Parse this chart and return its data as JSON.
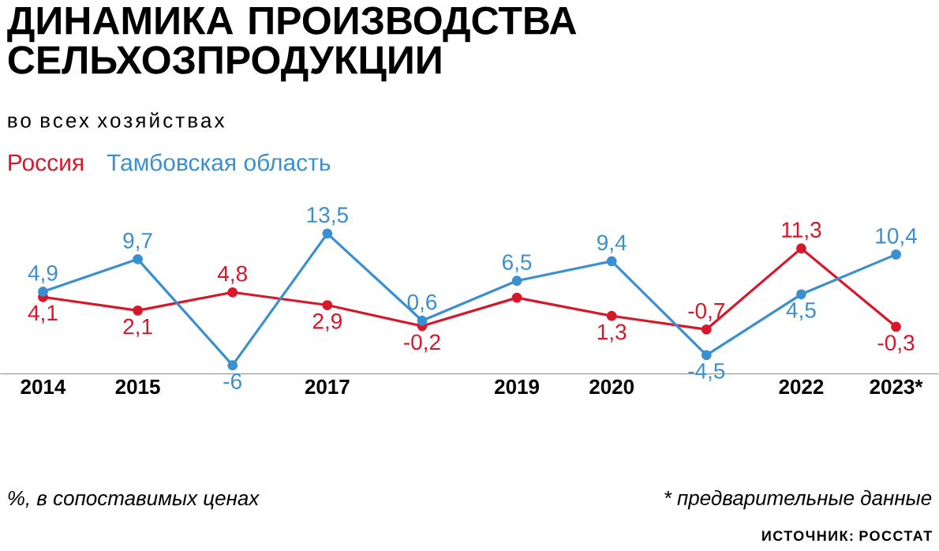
{
  "chart_data": {
    "type": "line",
    "title": "ДИНАМИКА ПРОИЗВОДСТВА СЕЛЬХОЗПРОДУКЦИИ",
    "subtitle": "во всех хозяйствах",
    "categories": [
      "2014",
      "2015",
      null,
      "2017",
      null,
      "2019",
      "2020",
      null,
      "2022",
      "2023*"
    ],
    "series": [
      {
        "name": "Россия",
        "color": "#d7182a",
        "values": [
          4.1,
          2.1,
          4.8,
          2.9,
          -0.2,
          4.0,
          1.3,
          -0.7,
          11.3,
          -0.3
        ],
        "value_labels": [
          "4,1",
          "2,1",
          "4,8",
          "2,9",
          "-0,2",
          null,
          "1,3",
          "-0,7",
          "11,3",
          "-0,3"
        ]
      },
      {
        "name": "Тамбовская область",
        "color": "#3a8fd0",
        "values": [
          4.9,
          9.7,
          -6,
          13.5,
          0.6,
          6.5,
          9.4,
          -4.5,
          4.5,
          10.4
        ],
        "value_labels": [
          "4,9",
          "9,7",
          "-6",
          "13,5",
          "0,6",
          "6,5",
          "9,4",
          "-4,5",
          "4,5",
          "10,4"
        ]
      }
    ],
    "marker": "circle",
    "line_style": "solid",
    "legend": "top left",
    "annotations": [
      "%, в сопоставимых ценах",
      "* предварительные данные",
      "ИСТОЧНИК: РОССТАТ"
    ]
  }
}
